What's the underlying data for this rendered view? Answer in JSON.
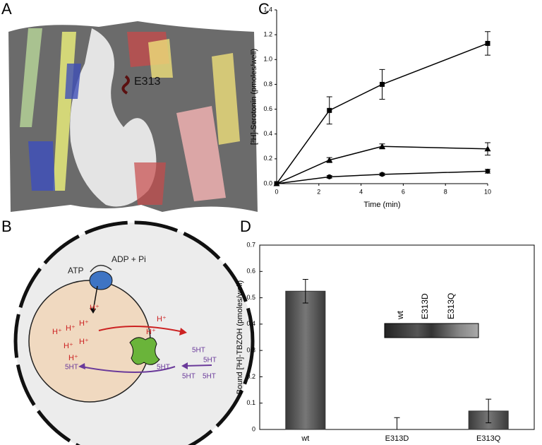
{
  "panels": {
    "labels": [
      "A",
      "B",
      "C",
      "D"
    ]
  },
  "panel_a": {
    "residue": "E313"
  },
  "panel_b": {
    "atp": "ATP",
    "adp": "ADP + Pi",
    "protons_inside": [
      "H⁺",
      "H⁺",
      "H⁺",
      "H⁺",
      "H⁺",
      "H⁺",
      "H⁺"
    ],
    "protons_outside": [
      "H⁺",
      "H⁺"
    ],
    "serotonin_inside": "5HT",
    "serotonin_transporter": "5HT",
    "serotonin_outside": [
      "5HT",
      "5HT",
      "5HT",
      "5HT"
    ]
  },
  "chart_data": [
    {
      "type": "line",
      "x_label": "Time (min)",
      "y_label": "[³H]-Serotonin  (pmoles/well)",
      "x": [
        0,
        2.5,
        5,
        10
      ],
      "xlim": [
        0,
        10
      ],
      "xticks": [
        0,
        2,
        4,
        6,
        8,
        10
      ],
      "ylim": [
        0,
        1.4
      ],
      "yticks": [
        {
          "value": 0,
          "label": "0.0"
        },
        0.2,
        0.4,
        0.6,
        0.8,
        {
          "value": 1,
          "label": "1.0"
        },
        1.2,
        1.4
      ],
      "series": [
        {
          "marker": "square",
          "color": "#000000",
          "values": [
            0,
            0.59,
            0.8,
            1.13
          ],
          "errors": [
            0,
            0.11,
            0.12,
            0.095
          ]
        },
        {
          "marker": "triangle",
          "color": "#000000",
          "values": [
            0,
            0.19,
            0.3,
            0.28
          ],
          "errors": [
            0,
            0.02,
            0.02,
            0.05
          ]
        },
        {
          "marker": "circle",
          "color": "#000000",
          "values": [
            0,
            0.055,
            0.075,
            0.1
          ],
          "errors": [
            0,
            0.01,
            0.01,
            0.015
          ]
        }
      ]
    },
    {
      "type": "bar",
      "y_label": "Bound [³H]-TBZOH  (pmoles/well)",
      "categories": [
        "wt",
        "E313D",
        "E313Q"
      ],
      "values": [
        0.525,
        0,
        0.07
      ],
      "errors": [
        0.045,
        0.045,
        0.045
      ],
      "color": "#5a5a5a",
      "ylim": [
        0,
        0.7
      ],
      "yticks": [
        0,
        0.1,
        0.2,
        0.3,
        0.4,
        0.5,
        0.6,
        0.7
      ],
      "inset_labels": [
        "wt",
        "E313D",
        "E313Q"
      ]
    }
  ]
}
